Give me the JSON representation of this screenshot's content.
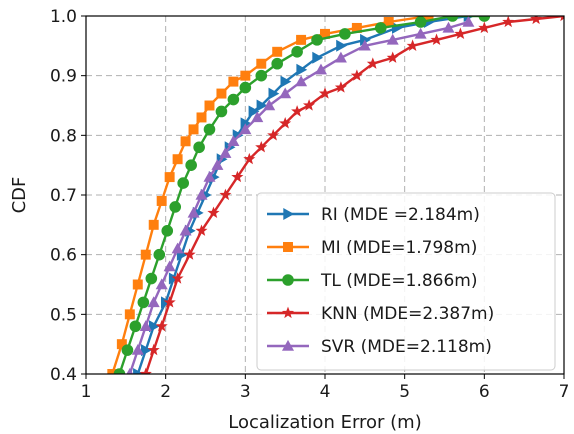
{
  "chart_data": {
    "type": "line",
    "title": "",
    "xlabel": "Localization Error (m)",
    "ylabel": "CDF",
    "xlim": [
      1,
      7
    ],
    "ylim": [
      0.4,
      1.0
    ],
    "xticks": [
      "1",
      "2",
      "3",
      "4",
      "5",
      "6",
      "7"
    ],
    "yticks": [
      "0.4",
      "0.5",
      "0.6",
      "0.7",
      "0.8",
      "0.9",
      "1.0"
    ],
    "grid": true,
    "legend_position": "bottom-right",
    "series": [
      {
        "name": "RI (MDE =2.184m)",
        "color": "#1f77b4",
        "marker": "triangle-right",
        "x": [
          1.65,
          1.75,
          1.85,
          2.0,
          2.1,
          2.2,
          2.3,
          2.4,
          2.5,
          2.6,
          2.7,
          2.8,
          2.9,
          3.0,
          3.1,
          3.2,
          3.35,
          3.5,
          3.7,
          3.9,
          4.2,
          4.5,
          4.9,
          5.3,
          5.8
        ],
        "y": [
          0.4,
          0.44,
          0.48,
          0.52,
          0.56,
          0.6,
          0.64,
          0.67,
          0.7,
          0.73,
          0.76,
          0.78,
          0.8,
          0.82,
          0.84,
          0.85,
          0.87,
          0.89,
          0.91,
          0.93,
          0.95,
          0.96,
          0.98,
          0.99,
          1.0
        ]
      },
      {
        "name": "MI (MDE=1.798m)",
        "color": "#ff7f0e",
        "marker": "square",
        "x": [
          1.33,
          1.45,
          1.55,
          1.65,
          1.75,
          1.85,
          1.95,
          2.05,
          2.15,
          2.25,
          2.35,
          2.45,
          2.55,
          2.7,
          2.85,
          3.0,
          3.2,
          3.4,
          3.7,
          4.0,
          4.4,
          4.8,
          5.3
        ],
        "y": [
          0.4,
          0.45,
          0.5,
          0.55,
          0.6,
          0.65,
          0.69,
          0.73,
          0.76,
          0.79,
          0.81,
          0.83,
          0.85,
          0.87,
          0.89,
          0.9,
          0.92,
          0.94,
          0.96,
          0.97,
          0.98,
          0.99,
          1.0
        ]
      },
      {
        "name": "TL (MDE=1.866m)",
        "color": "#2ca02c",
        "marker": "circle",
        "x": [
          1.42,
          1.52,
          1.62,
          1.72,
          1.82,
          1.92,
          2.02,
          2.12,
          2.22,
          2.32,
          2.42,
          2.55,
          2.7,
          2.85,
          3.0,
          3.2,
          3.4,
          3.65,
          3.9,
          4.25,
          4.7,
          5.2,
          5.6,
          6.0
        ],
        "y": [
          0.4,
          0.44,
          0.48,
          0.52,
          0.56,
          0.6,
          0.64,
          0.68,
          0.72,
          0.75,
          0.78,
          0.81,
          0.84,
          0.86,
          0.88,
          0.9,
          0.92,
          0.94,
          0.96,
          0.97,
          0.98,
          0.99,
          1.0,
          1.0
        ]
      },
      {
        "name": "KNN (MDE=2.387m)",
        "color": "#d62728",
        "marker": "star",
        "x": [
          1.75,
          1.85,
          1.95,
          2.05,
          2.15,
          2.3,
          2.45,
          2.6,
          2.75,
          2.9,
          3.05,
          3.2,
          3.35,
          3.5,
          3.65,
          3.8,
          4.0,
          4.2,
          4.4,
          4.6,
          4.85,
          5.1,
          5.4,
          5.7,
          6.0,
          6.3,
          6.65,
          7.0
        ],
        "y": [
          0.4,
          0.44,
          0.48,
          0.52,
          0.56,
          0.6,
          0.64,
          0.67,
          0.7,
          0.73,
          0.76,
          0.78,
          0.8,
          0.82,
          0.84,
          0.85,
          0.87,
          0.88,
          0.9,
          0.92,
          0.93,
          0.95,
          0.96,
          0.97,
          0.98,
          0.99,
          0.995,
          1.0
        ]
      },
      {
        "name": "SVR (MDE=2.118m)",
        "color": "#9467bd",
        "marker": "triangle-up",
        "x": [
          1.55,
          1.65,
          1.75,
          1.85,
          1.95,
          2.05,
          2.15,
          2.25,
          2.35,
          2.45,
          2.55,
          2.65,
          2.75,
          2.85,
          3.0,
          3.15,
          3.3,
          3.5,
          3.7,
          3.95,
          4.2,
          4.5,
          4.85,
          5.2,
          5.55,
          5.8
        ],
        "y": [
          0.4,
          0.44,
          0.48,
          0.52,
          0.55,
          0.58,
          0.61,
          0.64,
          0.67,
          0.7,
          0.73,
          0.75,
          0.77,
          0.79,
          0.81,
          0.83,
          0.85,
          0.87,
          0.89,
          0.91,
          0.93,
          0.95,
          0.96,
          0.97,
          0.98,
          0.99
        ]
      }
    ]
  }
}
